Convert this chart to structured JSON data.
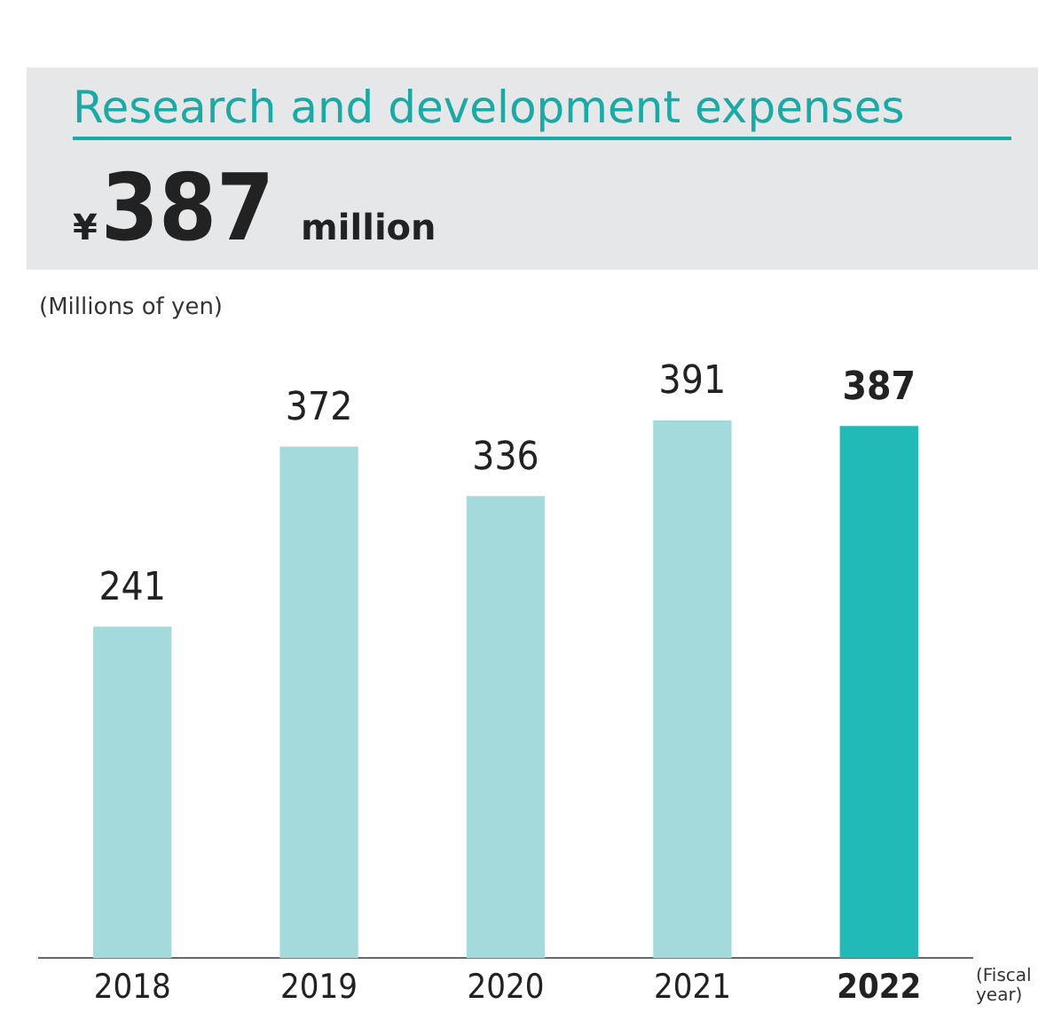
{
  "chart_data": {
    "type": "bar",
    "title": "Research and development expenses",
    "subtitle": "¥387 million",
    "ylabel": "(Millions of yen)",
    "xlabel": "(Fiscal year)",
    "categories": [
      "2018",
      "2019",
      "2020",
      "2021",
      "2022"
    ],
    "values": [
      241,
      372,
      336,
      391,
      387
    ],
    "colors": [
      "#a4dadb",
      "#a4dadb",
      "#a4dadb",
      "#a4dadb",
      "#22bab7"
    ],
    "tick_labels": "x",
    "grid": false,
    "legend": false,
    "data_labels": true
  }
}
